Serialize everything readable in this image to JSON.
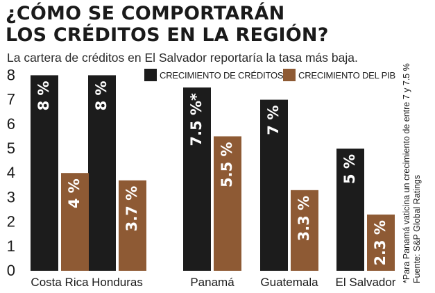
{
  "title_line1": "¿CÓMO SE COMPORTARÁN",
  "title_line2": "LOS CRÉDITOS EN LA REGIÓN?",
  "subtitle": "La cartera de créditos en El Salvador reportaría la tasa más baja.",
  "footnote": "*Para Panamá vaticina un crecimiento de entre 7 y 7.5 %",
  "source": "Fuente: S&P Global Ratings",
  "colors": {
    "credit": "#1c1c1c",
    "gdp": "#8e5a34",
    "text": "#1a1a1a"
  },
  "chart_data": {
    "type": "bar",
    "title": "¿CÓMO SE COMPORTARÁN LOS CRÉDITOS EN LA REGIÓN?",
    "categories": [
      "Costa Rica",
      "Honduras",
      "Panamá",
      "Guatemala",
      "El Salvador"
    ],
    "series": [
      {
        "name": "CRECIMIENTO DE CRÉDITOS",
        "values": [
          8,
          8,
          7.5,
          7,
          5
        ],
        "labels": [
          "8 %",
          "8 %",
          "7.5 %*",
          "7 %",
          "5 %"
        ]
      },
      {
        "name": "CRECIMIENTO DEL PIB",
        "values": [
          4,
          3.7,
          5.5,
          3.3,
          2.3
        ],
        "labels": [
          "4 %",
          "3.7 %",
          "5.5 %",
          "3.3 %",
          "2.3 %"
        ]
      }
    ],
    "yticks": [
      0,
      1,
      2,
      3,
      4,
      5,
      6,
      7,
      8
    ],
    "ylim": [
      0,
      8
    ],
    "xlabel": "",
    "ylabel": "",
    "grid": false,
    "legend": "top"
  }
}
